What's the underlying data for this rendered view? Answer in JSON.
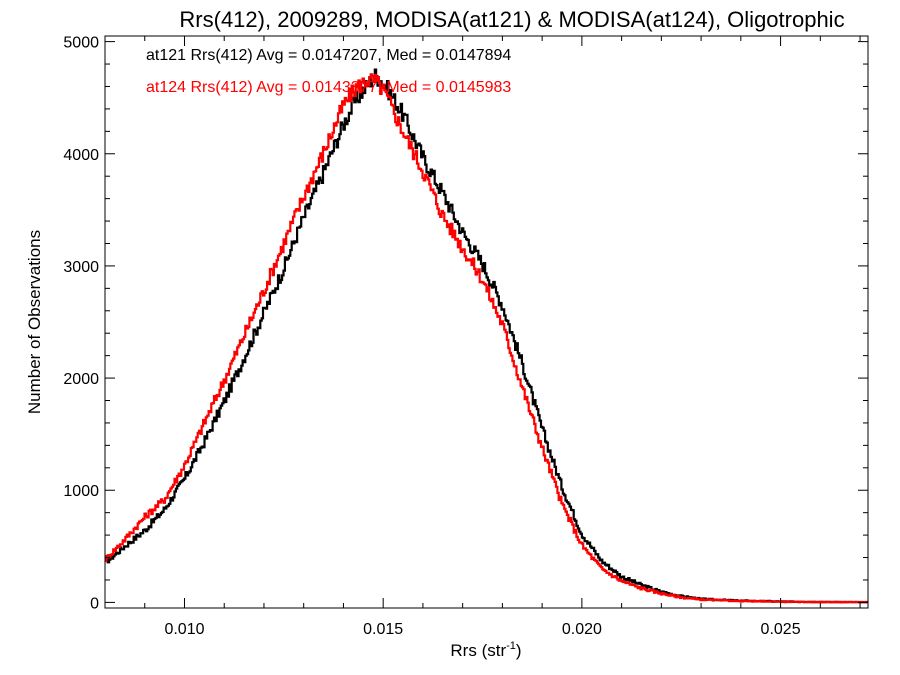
{
  "chart_data": {
    "type": "line",
    "title": "Rrs(412), 2009289, MODISA(at121) & MODISA(at124), Oligotrophic",
    "xlabel": "Rrs (str",
    "xlabel_sup": "-1",
    "xlabel_end": ")",
    "ylabel": "Number of Observations",
    "xlim": [
      0.008,
      0.0272
    ],
    "ylim": [
      -50,
      5050
    ],
    "x_ticks": [
      0.01,
      0.015,
      0.02,
      0.025
    ],
    "x_tick_labels": [
      "0.010",
      "0.015",
      "0.020",
      "0.025"
    ],
    "y_ticks": [
      0,
      1000,
      2000,
      3000,
      4000,
      5000
    ],
    "y_tick_labels": [
      "0",
      "1000",
      "2000",
      "3000",
      "4000",
      "5000"
    ],
    "grid": false,
    "legend_position": "top-left",
    "series": [
      {
        "name": "at121",
        "color": "#000000",
        "legend_text": "at121 Rrs(412) Avg = 0.0147207, Med = 0.0147894",
        "x": [
          0.008,
          0.0085,
          0.009,
          0.0095,
          0.01,
          0.0105,
          0.011,
          0.0115,
          0.012,
          0.0125,
          0.013,
          0.0135,
          0.014,
          0.0143,
          0.0146,
          0.0148,
          0.015,
          0.0152,
          0.0155,
          0.016,
          0.0165,
          0.017,
          0.0175,
          0.018,
          0.0185,
          0.019,
          0.0195,
          0.02,
          0.0205,
          0.021,
          0.0215,
          0.022,
          0.0225,
          0.023,
          0.024,
          0.025,
          0.026,
          0.0272
        ],
        "y": [
          350,
          500,
          640,
          830,
          1100,
          1430,
          1790,
          2180,
          2580,
          2980,
          3430,
          3830,
          4260,
          4470,
          4610,
          4700,
          4640,
          4530,
          4350,
          3970,
          3650,
          3300,
          3020,
          2650,
          2130,
          1550,
          1030,
          610,
          370,
          230,
          155,
          95,
          55,
          30,
          15,
          8,
          4,
          2
        ]
      },
      {
        "name": "at124",
        "color": "#ff0000",
        "legend_text": "at124 Rrs(412) Avg = 0.0143377, Med = 0.0145983",
        "x": [
          0.008,
          0.0085,
          0.009,
          0.0095,
          0.01,
          0.0105,
          0.011,
          0.0115,
          0.012,
          0.0125,
          0.013,
          0.0135,
          0.014,
          0.0143,
          0.0146,
          0.0148,
          0.015,
          0.0152,
          0.0155,
          0.016,
          0.0165,
          0.017,
          0.0175,
          0.018,
          0.0185,
          0.019,
          0.0195,
          0.02,
          0.0205,
          0.021,
          0.0215,
          0.022,
          0.0225,
          0.023,
          0.024,
          0.025,
          0.026,
          0.0272
        ],
        "y": [
          380,
          560,
          760,
          920,
          1220,
          1600,
          1980,
          2380,
          2780,
          3200,
          3620,
          4010,
          4430,
          4580,
          4660,
          4650,
          4570,
          4430,
          4200,
          3850,
          3450,
          3160,
          2880,
          2480,
          1920,
          1380,
          880,
          510,
          300,
          190,
          125,
          80,
          45,
          25,
          12,
          6,
          3,
          2
        ]
      }
    ]
  }
}
